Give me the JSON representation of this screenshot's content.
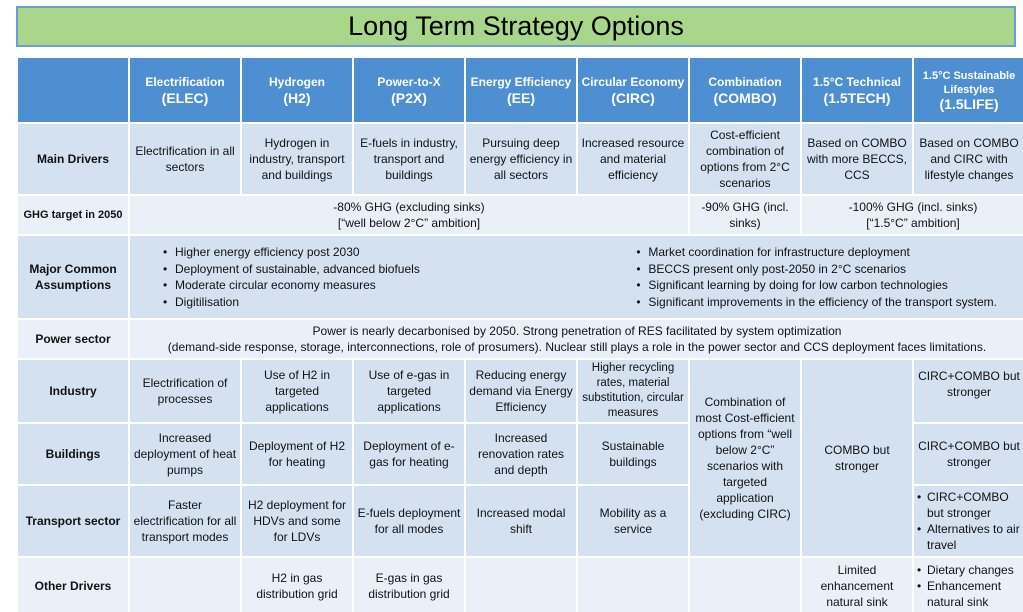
{
  "title": "Long Term Strategy Options",
  "headers": [
    {
      "name": "Electrification",
      "abbr": "(ELEC)"
    },
    {
      "name": "Hydrogen",
      "abbr": "(H2)"
    },
    {
      "name": "Power-to-X",
      "abbr": "(P2X)"
    },
    {
      "name": "Energy Efficiency",
      "abbr": "(EE)"
    },
    {
      "name": "Circular Economy",
      "abbr": "(CIRC)"
    },
    {
      "name": "Combination",
      "abbr": "(COMBO)"
    },
    {
      "name": "1.5°C Technical",
      "abbr": "(1.5TECH)"
    },
    {
      "name": "1.5°C Sustainable Lifestyles",
      "abbr": "(1.5LIFE)"
    }
  ],
  "rows": {
    "main_drivers": {
      "label": "Main Drivers",
      "cells": [
        "Electrification in all sectors",
        "Hydrogen in industry, transport and buildings",
        "E-fuels in industry, transport and buildings",
        "Pursuing deep energy efficiency in all sectors",
        "Increased resource and material efficiency",
        "Cost-efficient combination of options from 2°C scenarios",
        "Based on COMBO with more BECCS, CCS",
        "Based on COMBO and CIRC with lifestyle changes"
      ]
    },
    "ghg": {
      "label": "GHG target in 2050",
      "first_line1": "-80% GHG (excluding sinks)",
      "first_line2": "[“well below 2°C” ambition]",
      "combo": "-90% GHG (incl. sinks)",
      "last_line1": "-100% GHG (incl. sinks)",
      "last_line2": "[“1.5°C” ambition]"
    },
    "assumptions": {
      "label": "Major Common Assumptions",
      "left": [
        "Higher energy efficiency post 2030",
        "Deployment of sustainable, advanced biofuels",
        "Moderate circular economy measures",
        "Digitilisation"
      ],
      "right": [
        "Market coordination for infrastructure deployment",
        "BECCS present only post-2050 in 2°C scenarios",
        "Significant learning by doing for low carbon technologies",
        "Significant improvements in the efficiency of the transport system."
      ]
    },
    "power": {
      "label": "Power sector",
      "line1": "Power is nearly decarbonised by 2050. Strong penetration of RES facilitated by system optimization",
      "line2": "(demand-side response, storage, interconnections, role of prosumers). Nuclear still plays a role in the power sector and CCS deployment faces limitations."
    },
    "industry": {
      "label": "Industry",
      "cells": [
        "Electrification of processes",
        "Use of H2 in targeted applications",
        "Use of e-gas in targeted applications",
        "Reducing energy demand via Energy Efficiency",
        "Higher recycling rates, material substitution, circular measures"
      ],
      "life": "CIRC+COMBO but stronger"
    },
    "combo_merged": "Combination of most Cost-efficient options from “well below 2°C” scenarios with targeted application (excluding CIRC)",
    "tech_merged": "COMBO but stronger",
    "buildings": {
      "label": "Buildings",
      "cells": [
        "Increased deployment of heat pumps",
        "Deployment of H2 for heating",
        "Deployment of e-gas for heating",
        "Increased renovation rates and depth",
        "Sustainable buildings"
      ],
      "life": "CIRC+COMBO but stronger"
    },
    "transport": {
      "label": "Transport sector",
      "cells": [
        "Faster electrification for all transport modes",
        "H2 deployment for HDVs and some for LDVs",
        "E-fuels deployment for all modes",
        "Increased modal shift",
        "Mobility as a service"
      ],
      "life": [
        "CIRC+COMBO but stronger",
        "Alternatives to air travel"
      ]
    },
    "other": {
      "label": "Other Drivers",
      "cells": [
        "",
        "H2 in gas distribution grid",
        "E-gas in gas distribution grid",
        "",
        "",
        "",
        "Limited enhancement natural sink"
      ],
      "life": [
        "Dietary changes",
        "Enhancement natural sink"
      ]
    }
  }
}
